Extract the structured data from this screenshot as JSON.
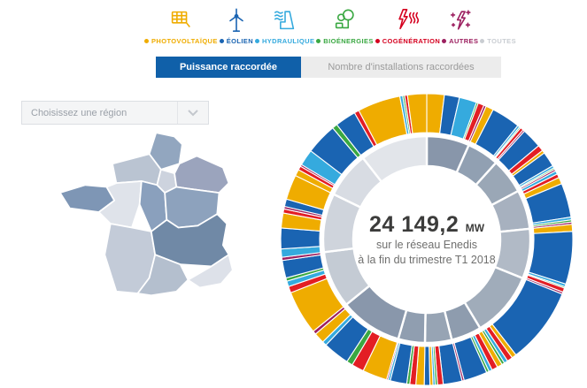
{
  "legend": {
    "items": [
      {
        "id": "photovoltaique",
        "label": "PHOTOVOLTAÏQUE",
        "color": "#efac00",
        "icon": "solar-panel"
      },
      {
        "id": "eolien",
        "label": "ÉOLIEN",
        "color": "#1a64b2",
        "icon": "wind-turbine"
      },
      {
        "id": "hydraulique",
        "label": "HYDRAULIQUE",
        "color": "#35aade",
        "icon": "dam"
      },
      {
        "id": "bioenergies",
        "label": "BIOÉNERGIES",
        "color": "#3aa842",
        "icon": "tree"
      },
      {
        "id": "cogeneration",
        "label": "COGÉNÉRATION",
        "color": "#d5001f",
        "icon": "lightning-heat"
      },
      {
        "id": "autres",
        "label": "AUTRES",
        "color": "#9c2060",
        "icon": "sparkle-bolt"
      },
      {
        "id": "toutes",
        "label": "TOUTES",
        "color": "#c9cdd2",
        "icon": null
      }
    ]
  },
  "tabs": {
    "active_label": "Puissance raccordée",
    "inactive_label": "Nombre d'installations raccordées",
    "active_bg": "#1060a9"
  },
  "region_select": {
    "placeholder": "Choisissez une région"
  },
  "map": {
    "regions": [
      {
        "fill": "#92a6bf"
      },
      {
        "fill": "#bac4d2"
      },
      {
        "fill": "#cdd3de"
      },
      {
        "fill": "#9ba4bd"
      },
      {
        "fill": "#7e96b5"
      },
      {
        "fill": "#dfe3ea"
      },
      {
        "fill": "#8aa0bd"
      },
      {
        "fill": "#8da2bd"
      },
      {
        "fill": "#c3cbd8"
      },
      {
        "fill": "#7089a6"
      },
      {
        "fill": "#b4bfce"
      },
      {
        "fill": "#dde1e9"
      }
    ]
  },
  "donut_center": {
    "value": "24 149,2",
    "unit": "MW",
    "line1": "sur le réseau Enedis",
    "line2": "à la fin du trimestre T1 2018"
  },
  "chart_data": {
    "type": "sunburst",
    "total_mw": "24 149,2",
    "unit": "MW",
    "caption": "sur le réseau Enedis à la fin du trimestre T1 2018",
    "legend_position": "top",
    "energy_colors": {
      "photovoltaique": "#efac00",
      "eolien": "#1a64b2",
      "hydraulique": "#35aade",
      "bioenergies": "#3aa842",
      "cogeneration": "#e31e24",
      "autres": "#9c2060"
    },
    "inner_ring": "regions (unlabeled, gray shades)",
    "outer_ring": "energy mix per region (fraction of region angular span)",
    "regions": [
      {
        "span_deg": 24,
        "gray": "#8896aa",
        "segments": [
          {
            "type": "photovoltaique",
            "frac": 0.29
          },
          {
            "type": "eolien",
            "frac": 0.25
          },
          {
            "type": "hydraulique",
            "frac": 0.29
          },
          {
            "type": "bioenergies",
            "frac": 0.03
          },
          {
            "type": "cogeneration",
            "frac": 0.1
          },
          {
            "type": "autres",
            "frac": 0.04
          }
        ]
      },
      {
        "span_deg": 18,
        "gray": "#91a0b2",
        "segments": [
          {
            "type": "photovoltaique",
            "frac": 0.17
          },
          {
            "type": "eolien",
            "frac": 0.64
          },
          {
            "type": "hydraulique",
            "frac": 0.05
          },
          {
            "type": "bioenergies",
            "frac": 0.03
          },
          {
            "type": "cogeneration",
            "frac": 0.07
          },
          {
            "type": "autres",
            "frac": 0.04
          }
        ]
      },
      {
        "span_deg": 20,
        "gray": "#9aa7b6",
        "segments": [
          {
            "type": "eolien",
            "frac": 0.4
          },
          {
            "type": "cogeneration",
            "frac": 0.12
          },
          {
            "type": "photovoltaique",
            "frac": 0.06
          },
          {
            "type": "eolien",
            "frac": 0.3
          },
          {
            "type": "hydraulique",
            "frac": 0.05
          },
          {
            "type": "bioenergies",
            "frac": 0.03
          },
          {
            "type": "autres",
            "frac": 0.04
          }
        ]
      },
      {
        "span_deg": 22,
        "gray": "#a7b1bf",
        "segments": [
          {
            "type": "hydraulique",
            "frac": 0.06
          },
          {
            "type": "cogeneration",
            "frac": 0.07
          },
          {
            "type": "photovoltaique",
            "frac": 0.12
          },
          {
            "type": "eolien",
            "frac": 0.62
          },
          {
            "type": "hydraulique",
            "frac": 0.05
          },
          {
            "type": "bioenergies",
            "frac": 0.04
          },
          {
            "type": "autres",
            "frac": 0.04
          }
        ]
      },
      {
        "span_deg": 28,
        "gray": "#b1bac6",
        "segments": [
          {
            "type": "photovoltaique",
            "frac": 0.1
          },
          {
            "type": "eolien",
            "frac": 0.75
          },
          {
            "type": "hydraulique",
            "frac": 0.04
          },
          {
            "type": "bioenergies",
            "frac": 0.02
          },
          {
            "type": "cogeneration",
            "frac": 0.06
          },
          {
            "type": "autres",
            "frac": 0.03
          }
        ]
      },
      {
        "span_deg": 37,
        "gray": "#a0acba",
        "segments": [
          {
            "type": "eolien",
            "frac": 0.82
          },
          {
            "type": "photovoltaique",
            "frac": 0.05
          },
          {
            "type": "cogeneration",
            "frac": 0.06
          },
          {
            "type": "hydraulique",
            "frac": 0.04
          },
          {
            "type": "bioenergies",
            "frac": 0.03
          }
        ]
      },
      {
        "span_deg": 17,
        "gray": "#8e9cae",
        "segments": [
          {
            "type": "photovoltaique",
            "frac": 0.12
          },
          {
            "type": "cogeneration",
            "frac": 0.14
          },
          {
            "type": "hydraulique",
            "frac": 0.08
          },
          {
            "type": "bioenergies",
            "frac": 0.06
          },
          {
            "type": "eolien",
            "frac": 0.55
          },
          {
            "type": "autres",
            "frac": 0.05
          }
        ]
      },
      {
        "span_deg": 15,
        "gray": "#97a4b4",
        "segments": [
          {
            "type": "eolien",
            "frac": 0.5
          },
          {
            "type": "cogeneration",
            "frac": 0.15
          },
          {
            "type": "bioenergies",
            "frac": 0.06
          },
          {
            "type": "hydraulique",
            "frac": 0.06
          },
          {
            "type": "photovoltaique",
            "frac": 0.08
          },
          {
            "type": "eolien",
            "frac": 0.15
          }
        ]
      },
      {
        "span_deg": 15,
        "gray": "#909eb0",
        "segments": [
          {
            "type": "photovoltaique",
            "frac": 0.22
          },
          {
            "type": "cogeneration",
            "frac": 0.16
          },
          {
            "type": "bioenergies",
            "frac": 0.08
          },
          {
            "type": "eolien",
            "frac": 0.44
          },
          {
            "type": "hydraulique",
            "frac": 0.06
          },
          {
            "type": "autres",
            "frac": 0.04
          }
        ]
      },
      {
        "span_deg": 35,
        "gray": "#8997ab",
        "segments": [
          {
            "type": "photovoltaique",
            "frac": 0.28
          },
          {
            "type": "cogeneration",
            "frac": 0.14
          },
          {
            "type": "bioenergies",
            "frac": 0.07
          },
          {
            "type": "eolien",
            "frac": 0.3
          },
          {
            "type": "hydraulique",
            "frac": 0.05
          },
          {
            "type": "photovoltaique",
            "frac": 0.12
          },
          {
            "type": "autres",
            "frac": 0.04
          }
        ]
      },
      {
        "span_deg": 32,
        "gray": "#c4cbd4",
        "segments": [
          {
            "type": "photovoltaique",
            "frac": 0.55
          },
          {
            "type": "cogeneration",
            "frac": 0.08
          },
          {
            "type": "hydraulique",
            "frac": 0.07
          },
          {
            "type": "bioenergies",
            "frac": 0.04
          },
          {
            "type": "eolien",
            "frac": 0.22
          },
          {
            "type": "autres",
            "frac": 0.04
          }
        ]
      },
      {
        "span_deg": 33,
        "gray": "#cfd4dc",
        "segments": [
          {
            "type": "hydraulique",
            "frac": 0.1
          },
          {
            "type": "eolien",
            "frac": 0.25
          },
          {
            "type": "photovoltaique",
            "frac": 0.18
          },
          {
            "type": "cogeneration",
            "frac": 0.05
          },
          {
            "type": "autres",
            "frac": 0.03
          },
          {
            "type": "eolien",
            "frac": 0.09
          },
          {
            "type": "photovoltaique",
            "frac": 0.3
          }
        ]
      },
      {
        "span_deg": 26,
        "gray": "#d8dce3",
        "segments": [
          {
            "type": "photovoltaique",
            "frac": 0.1
          },
          {
            "type": "cogeneration",
            "frac": 0.06
          },
          {
            "type": "autres",
            "frac": 0.03
          },
          {
            "type": "hydraulique",
            "frac": 0.25
          },
          {
            "type": "eolien",
            "frac": 0.48
          },
          {
            "type": "bioenergies",
            "frac": 0.08
          }
        ]
      },
      {
        "span_deg": 38,
        "gray": "#e2e5ea",
        "segments": [
          {
            "type": "eolien",
            "frac": 0.22
          },
          {
            "type": "cogeneration",
            "frac": 0.05
          },
          {
            "type": "photovoltaique",
            "frac": 0.45
          },
          {
            "type": "hydraulique",
            "frac": 0.03
          },
          {
            "type": "bioenergies",
            "frac": 0.02
          },
          {
            "type": "cogeneration",
            "frac": 0.03
          },
          {
            "type": "photovoltaique",
            "frac": 0.2
          }
        ]
      }
    ]
  }
}
